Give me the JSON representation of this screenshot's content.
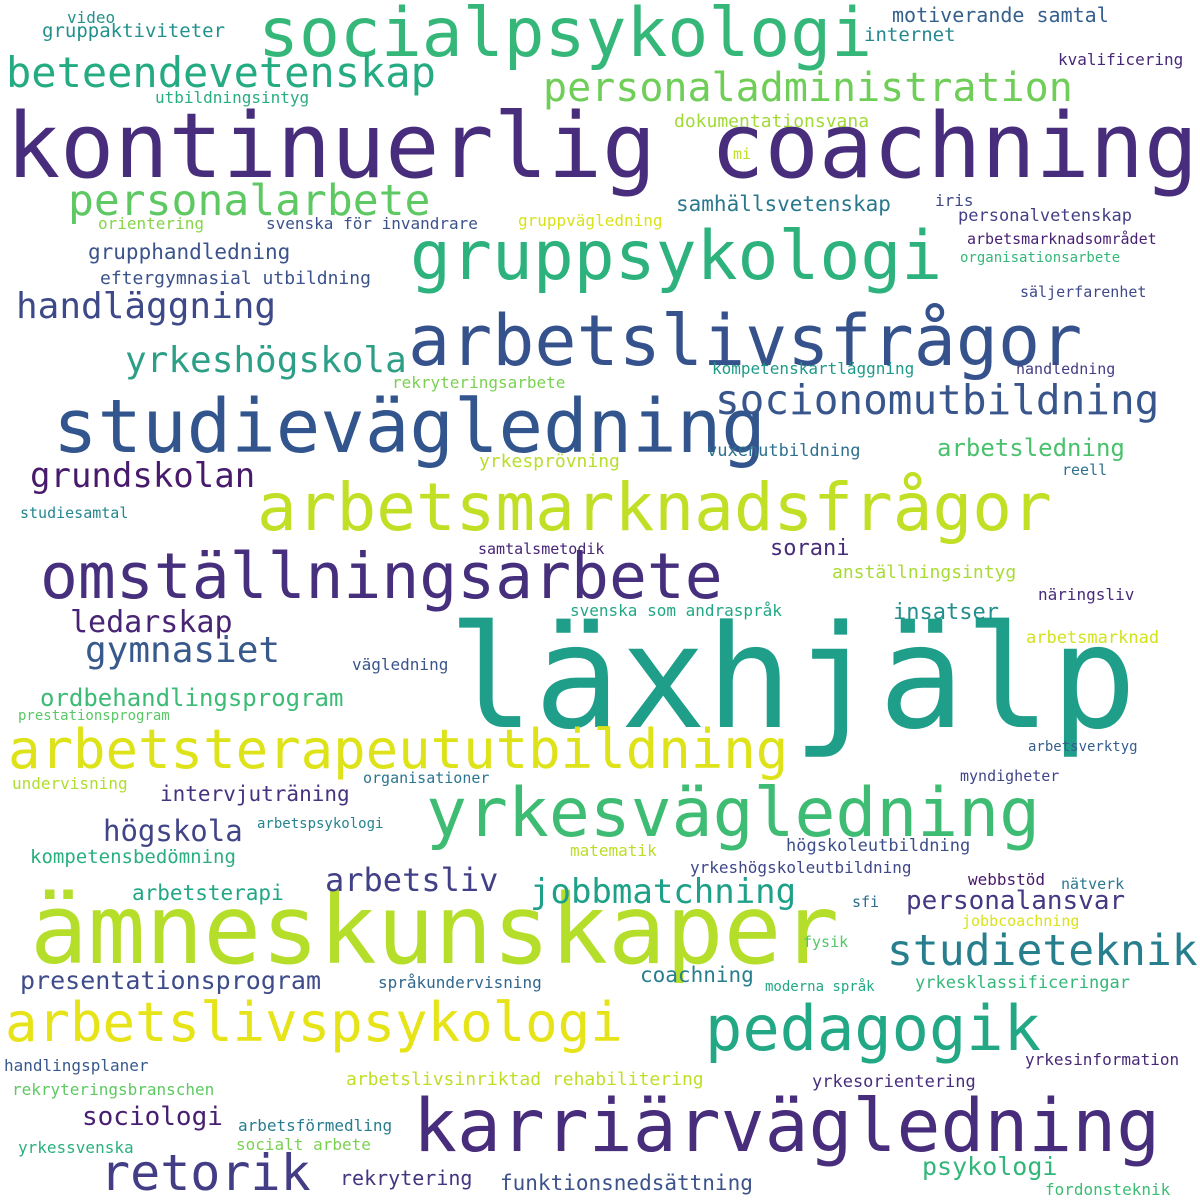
{
  "words": [
    {
      "text": "läxhjälp",
      "color": "#1f9e89"
    },
    {
      "text": "kontinuerlig coachning",
      "color": "#472d7b"
    },
    {
      "text": "ämneskunskaper",
      "color": "#b5de2b"
    },
    {
      "text": "karriärvägledning",
      "color": "#472d7b"
    },
    {
      "text": "arbetsmarknadsfrågor",
      "color": "#c0df25"
    },
    {
      "text": "studievägledning",
      "color": "#31558c"
    },
    {
      "text": "arbetslivsfrågor",
      "color": "#35528c"
    },
    {
      "text": "omställningsarbete",
      "color": "#462f7c"
    },
    {
      "text": "gruppsykologi",
      "color": "#2db27d"
    },
    {
      "text": "socialpsykologi",
      "color": "#35b779"
    },
    {
      "text": "yrkesvägledning",
      "color": "#3fbc73"
    },
    {
      "text": "arbetsterapeututbildning",
      "color": "#dde318"
    },
    {
      "text": "arbetslivspsykologi",
      "color": "#e6e419"
    },
    {
      "text": "pedagogik",
      "color": "#22a884"
    },
    {
      "text": "retorik",
      "color": "#423d84"
    },
    {
      "text": "beteendevetenskap",
      "color": "#25ab82"
    },
    {
      "text": "personaladministration",
      "color": "#6ece58"
    },
    {
      "text": "personalarbete",
      "color": "#5ec962"
    },
    {
      "text": "socionomutbildning",
      "color": "#39568c"
    },
    {
      "text": "studieteknik",
      "color": "#277f8e"
    },
    {
      "text": "jobbmatchning",
      "color": "#1fa088"
    },
    {
      "text": "handläggning",
      "color": "#3e4989"
    },
    {
      "text": "yrkeshögskola",
      "color": "#2c9f86"
    },
    {
      "text": "grundskolan",
      "color": "#481a6c"
    },
    {
      "text": "gymnasiet",
      "color": "#38598c"
    },
    {
      "text": "ledarskap",
      "color": "#482475"
    },
    {
      "text": "arbetsliv",
      "color": "#424086"
    },
    {
      "text": "ordbehandlingsprogram",
      "color": "#3cbb75"
    },
    {
      "text": "presentationsprogram",
      "color": "#3e4c8a"
    },
    {
      "text": "högskola",
      "color": "#414487"
    },
    {
      "text": "personalansvar",
      "color": "#443983"
    },
    {
      "text": "sociologi",
      "color": "#481f70"
    },
    {
      "text": "psykologi",
      "color": "#33b67a"
    },
    {
      "text": "motiverande samtal",
      "color": "#355f8d"
    },
    {
      "text": "samhällsvetenskap",
      "color": "#2a788e"
    },
    {
      "text": "arbetsledning",
      "color": "#4ac16d"
    },
    {
      "text": "grupphandledning",
      "color": "#3b528b"
    },
    {
      "text": "sorani",
      "color": "#472c7a"
    },
    {
      "text": "intervjuträning",
      "color": "#46327e"
    },
    {
      "text": "insatser",
      "color": "#218f8d"
    },
    {
      "text": "arbetsterapi",
      "color": "#22a785"
    },
    {
      "text": "coachning",
      "color": "#287d8e"
    },
    {
      "text": "kompetensbedömning",
      "color": "#29af7f"
    },
    {
      "text": "rekrytering",
      "color": "#453581"
    },
    {
      "text": "funktionsnedsättning",
      "color": "#3b528b"
    },
    {
      "text": "gruppaktiviteter",
      "color": "#21918c"
    },
    {
      "text": "internet",
      "color": "#23898e"
    },
    {
      "text": "video",
      "color": "#21918c"
    },
    {
      "text": "kvalificering",
      "color": "#482878"
    },
    {
      "text": "utbildningsintyg",
      "color": "#26ad81"
    },
    {
      "text": "dokumentationsvana",
      "color": "#a2da37"
    },
    {
      "text": "mi",
      "color": "#bddf26"
    },
    {
      "text": "orientering",
      "color": "#86d549"
    },
    {
      "text": "svenska för invandrare",
      "color": "#3b528b"
    },
    {
      "text": "gruppvägledning",
      "color": "#d8e219"
    },
    {
      "text": "iris",
      "color": "#3e4a89"
    },
    {
      "text": "personalvetenskap",
      "color": "#433e85"
    },
    {
      "text": "arbetsmarknadsområdet",
      "color": "#482173"
    },
    {
      "text": "organisationsarbete",
      "color": "#35b779"
    },
    {
      "text": "eftergymnasial utbildning",
      "color": "#3b528b"
    },
    {
      "text": "säljerfarenhet",
      "color": "#3f4889"
    },
    {
      "text": "kompetenskartläggning",
      "color": "#1f9a8a"
    },
    {
      "text": "handledning",
      "color": "#433d84"
    },
    {
      "text": "rekryteringsarbete",
      "color": "#7ad151"
    },
    {
      "text": "yrkesprövning",
      "color": "#b8de29"
    },
    {
      "text": "vuxenutbildning",
      "color": "#2d718e"
    },
    {
      "text": "reell",
      "color": "#2d708e"
    },
    {
      "text": "studiesamtal",
      "color": "#24868e"
    },
    {
      "text": "samtalsmetodik",
      "color": "#482576"
    },
    {
      "text": "anställningsintyg",
      "color": "#a8db34"
    },
    {
      "text": "svenska som andraspråk",
      "color": "#22a785"
    },
    {
      "text": "näringsliv",
      "color": "#472a7a"
    },
    {
      "text": "arbetsmarknad",
      "color": "#d2e21b"
    },
    {
      "text": "vägledning",
      "color": "#3a548c"
    },
    {
      "text": "prestationsprogram",
      "color": "#58c765"
    },
    {
      "text": "arbetsverktyg",
      "color": "#355e8d"
    },
    {
      "text": "undervisning",
      "color": "#b0dd2f"
    },
    {
      "text": "organisationer",
      "color": "#2b758e"
    },
    {
      "text": "myndigheter",
      "color": "#404588"
    },
    {
      "text": "arbetspsykologi",
      "color": "#25848e"
    },
    {
      "text": "matematik",
      "color": "#bade28"
    },
    {
      "text": "högskoleutbildning",
      "color": "#3d4e8a"
    },
    {
      "text": "yrkeshögskoleutbildning",
      "color": "#3f4788"
    },
    {
      "text": "webbstöd",
      "color": "#481769"
    },
    {
      "text": "nätverk",
      "color": "#2a788e"
    },
    {
      "text": "sfi",
      "color": "#2e6d8e"
    },
    {
      "text": "jobbcoachning",
      "color": "#dae319"
    },
    {
      "text": "fysik",
      "color": "#52c569"
    },
    {
      "text": "språkundervisning",
      "color": "#31678e"
    },
    {
      "text": "moderna språk",
      "color": "#22a884"
    },
    {
      "text": "yrkesklassificeringar",
      "color": "#35b779"
    },
    {
      "text": "handlingsplaner",
      "color": "#38598c"
    },
    {
      "text": "rekryteringsbranschen",
      "color": "#5ec962"
    },
    {
      "text": "arbetslivsinriktad rehabilitering",
      "color": "#bddf26"
    },
    {
      "text": "yrkesorientering",
      "color": "#472d7b"
    },
    {
      "text": "yrkesinformation",
      "color": "#482878"
    },
    {
      "text": "arbetsförmedling",
      "color": "#287c8e"
    },
    {
      "text": "socialt arbete",
      "color": "#7ad151"
    },
    {
      "text": "yrkessvenska",
      "color": "#2ab07f"
    },
    {
      "text": "fordonsteknik",
      "color": "#3dbc74"
    }
  ]
}
